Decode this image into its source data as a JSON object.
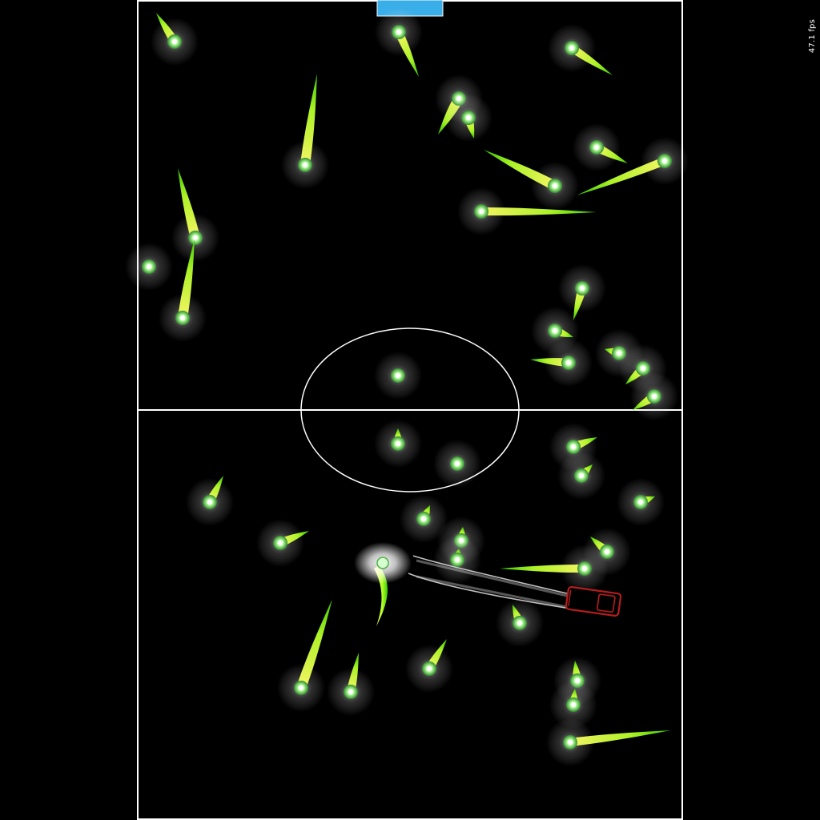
{
  "hud": {
    "fps_text": "47.1 fps"
  },
  "colors": {
    "background": "#000000",
    "field_lines": "#ffffff",
    "goal": "#3aaee8",
    "ball_glow": "#9cff60",
    "trail": "#ccff33",
    "car": "#b51d1d",
    "car_tire_marks": "#d8d8d8"
  },
  "icons": {
    "ball": "glowing-ball-icon",
    "car": "car-icon",
    "goal": "goal-rect"
  }
}
